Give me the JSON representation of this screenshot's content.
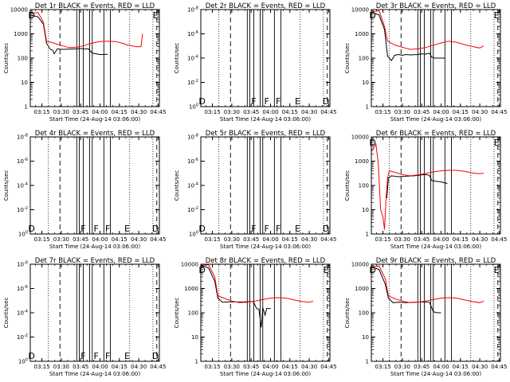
{
  "chart_data": {
    "type": "line",
    "x_ticks": [
      "03:15",
      "03:30",
      "03:45",
      "04:00",
      "04:15",
      "04:30",
      "04:45"
    ],
    "xlim": [
      "03:06",
      "04:46"
    ],
    "xlabel": "Start Time (24-Aug-14 03:06:00)",
    "ylabel": "Counts/sec",
    "y_scale": "log",
    "y_ticks_real": [
      "1",
      "10",
      "100",
      "1000",
      "10000"
    ],
    "y_ticks_empty": [
      "10^0",
      "10^-2",
      "10^-4",
      "10^-6",
      "10^-8"
    ],
    "colors": {
      "events": "#000000",
      "lld": "#ff0000"
    },
    "vlines": {
      "dotted": [
        "03:20",
        "04:23",
        "04:41"
      ],
      "dashed": [
        "03:29",
        "04:44"
      ],
      "solid": [
        "03:42",
        "03:44",
        "03:47",
        "03:52",
        "03:54",
        "04:03",
        "04:08"
      ]
    },
    "flags_empty": [
      {
        "t": "03:07",
        "text": "D"
      },
      {
        "t": "03:47",
        "text": "F"
      },
      {
        "t": "03:57",
        "text": "F"
      },
      {
        "t": "04:06",
        "text": "F"
      },
      {
        "t": "04:21",
        "text": "E"
      },
      {
        "t": "04:43",
        "text": "D"
      }
    ],
    "flags_top": [
      {
        "t": "03:07",
        "text": "D"
      },
      {
        "t": "04:43",
        "text": "E"
      }
    ],
    "panels": [
      {
        "title": "Det 1r BLACK = Events, RED = LLD",
        "mode": "data",
        "events": [
          [
            3.1,
            6000
          ],
          [
            3.2,
            5000
          ],
          [
            3.27,
            2500
          ],
          [
            3.31,
            400
          ],
          [
            3.36,
            230
          ],
          [
            3.39,
            210
          ],
          [
            3.41,
            150
          ],
          [
            3.45,
            240
          ],
          [
            3.5,
            230
          ],
          [
            3.6,
            235
          ],
          [
            3.7,
            240
          ],
          [
            3.75,
            250
          ],
          [
            3.78,
            240
          ],
          [
            3.85,
            240
          ],
          [
            3.9,
            160
          ],
          [
            3.95,
            150
          ],
          [
            4.0,
            140
          ],
          [
            4.05,
            140
          ],
          [
            4.1,
            145
          ]
        ],
        "lld": [
          [
            3.1,
            7000
          ],
          [
            3.2,
            7500
          ],
          [
            3.27,
            3000
          ],
          [
            3.31,
            500
          ],
          [
            3.4,
            420
          ],
          [
            3.5,
            330
          ],
          [
            3.6,
            270
          ],
          [
            3.7,
            280
          ],
          [
            3.8,
            330
          ],
          [
            3.9,
            420
          ],
          [
            4.0,
            480
          ],
          [
            4.1,
            500
          ],
          [
            4.2,
            480
          ],
          [
            4.3,
            400
          ],
          [
            4.35,
            350
          ],
          [
            4.45,
            300
          ],
          [
            4.5,
            290
          ],
          [
            4.53,
            300
          ],
          [
            4.55,
            1000
          ]
        ]
      },
      {
        "title": "Det 2r BLACK = Events, RED = LLD",
        "mode": "empty"
      },
      {
        "title": "Det 3r BLACK = Events, RED = LLD",
        "mode": "data",
        "events": [
          [
            3.1,
            8000
          ],
          [
            3.2,
            6000
          ],
          [
            3.27,
            1500
          ],
          [
            3.31,
            120
          ],
          [
            3.36,
            80
          ],
          [
            3.4,
            130
          ],
          [
            3.45,
            140
          ],
          [
            3.5,
            130
          ],
          [
            3.55,
            140
          ],
          [
            3.6,
            135
          ],
          [
            3.7,
            140
          ],
          [
            3.75,
            150
          ],
          [
            3.8,
            145
          ],
          [
            3.85,
            160
          ],
          [
            3.88,
            110
          ],
          [
            3.92,
            100
          ],
          [
            4.0,
            100
          ],
          [
            4.05,
            100
          ]
        ],
        "lld": [
          [
            3.1,
            8000
          ],
          [
            3.2,
            9000
          ],
          [
            3.27,
            2000
          ],
          [
            3.31,
            500
          ],
          [
            3.4,
            350
          ],
          [
            3.5,
            280
          ],
          [
            3.6,
            230
          ],
          [
            3.7,
            240
          ],
          [
            3.8,
            270
          ],
          [
            3.9,
            340
          ],
          [
            4.0,
            420
          ],
          [
            4.1,
            500
          ],
          [
            4.2,
            450
          ],
          [
            4.3,
            360
          ],
          [
            4.4,
            300
          ],
          [
            4.5,
            260
          ],
          [
            4.55,
            320
          ]
        ]
      },
      {
        "title": "Det 4r BLACK = Events, RED = LLD",
        "mode": "empty"
      },
      {
        "title": "Det 5r BLACK = Events, RED = LLD",
        "mode": "empty"
      },
      {
        "title": "Det 6r BLACK = Events, RED = LLD",
        "mode": "data",
        "events": [
          [
            3.3,
            30
          ],
          [
            3.32,
            200
          ],
          [
            3.36,
            250
          ],
          [
            3.45,
            230
          ],
          [
            3.55,
            240
          ],
          [
            3.65,
            250
          ],
          [
            3.75,
            270
          ],
          [
            3.8,
            280
          ],
          [
            3.85,
            260
          ],
          [
            3.88,
            160
          ],
          [
            3.92,
            150
          ],
          [
            4.0,
            140
          ],
          [
            4.08,
            120
          ]
        ],
        "lld": [
          [
            3.1,
            2500
          ],
          [
            3.13,
            3500
          ],
          [
            3.16,
            5000
          ],
          [
            3.19,
            800
          ],
          [
            3.22,
            10
          ],
          [
            3.25,
            5
          ],
          [
            3.27,
            1.5
          ],
          [
            3.29,
            30
          ],
          [
            3.31,
            200
          ],
          [
            3.33,
            400
          ],
          [
            3.4,
            350
          ],
          [
            3.5,
            280
          ],
          [
            3.6,
            250
          ],
          [
            3.7,
            270
          ],
          [
            3.8,
            310
          ],
          [
            3.9,
            360
          ],
          [
            4.0,
            400
          ],
          [
            4.1,
            420
          ],
          [
            4.2,
            420
          ],
          [
            4.3,
            380
          ],
          [
            4.4,
            330
          ],
          [
            4.5,
            300
          ],
          [
            4.55,
            320
          ]
        ]
      },
      {
        "title": "Det 7r BLACK = Events, RED = LLD",
        "mode": "empty"
      },
      {
        "title": "Det 8r BLACK = Events, RED = LLD",
        "mode": "data",
        "events": [
          [
            3.1,
            9000
          ],
          [
            3.2,
            7000
          ],
          [
            3.28,
            2000
          ],
          [
            3.32,
            400
          ],
          [
            3.38,
            270
          ],
          [
            3.45,
            280
          ],
          [
            3.55,
            280
          ],
          [
            3.65,
            280
          ],
          [
            3.75,
            290
          ],
          [
            3.78,
            280
          ],
          [
            3.82,
            150
          ],
          [
            3.85,
            140
          ],
          [
            3.88,
            25
          ],
          [
            3.9,
            160
          ],
          [
            3.93,
            80
          ],
          [
            3.95,
            150
          ],
          [
            4.0,
            150
          ]
        ],
        "lld": [
          [
            3.1,
            9000
          ],
          [
            3.2,
            9500
          ],
          [
            3.28,
            3000
          ],
          [
            3.32,
            500
          ],
          [
            3.4,
            400
          ],
          [
            3.5,
            300
          ],
          [
            3.6,
            260
          ],
          [
            3.7,
            270
          ],
          [
            3.8,
            300
          ],
          [
            3.9,
            350
          ],
          [
            4.0,
            400
          ],
          [
            4.1,
            420
          ],
          [
            4.2,
            400
          ],
          [
            4.3,
            340
          ],
          [
            4.4,
            290
          ],
          [
            4.5,
            270
          ],
          [
            4.55,
            300
          ]
        ]
      },
      {
        "title": "Det 9r BLACK = Events, RED = LLD",
        "mode": "data",
        "events": [
          [
            3.1,
            8000
          ],
          [
            3.2,
            6000
          ],
          [
            3.28,
            1500
          ],
          [
            3.32,
            400
          ],
          [
            3.38,
            260
          ],
          [
            3.45,
            270
          ],
          [
            3.55,
            260
          ],
          [
            3.65,
            270
          ],
          [
            3.75,
            280
          ],
          [
            3.85,
            270
          ],
          [
            3.9,
            110
          ],
          [
            3.95,
            100
          ],
          [
            4.0,
            100
          ]
        ],
        "lld": [
          [
            3.1,
            8000
          ],
          [
            3.2,
            8500
          ],
          [
            3.28,
            2500
          ],
          [
            3.32,
            500
          ],
          [
            3.4,
            380
          ],
          [
            3.5,
            300
          ],
          [
            3.6,
            260
          ],
          [
            3.7,
            270
          ],
          [
            3.8,
            300
          ],
          [
            3.9,
            350
          ],
          [
            4.0,
            400
          ],
          [
            4.1,
            420
          ],
          [
            4.2,
            400
          ],
          [
            4.3,
            340
          ],
          [
            4.4,
            290
          ],
          [
            4.5,
            260
          ],
          [
            4.55,
            300
          ]
        ]
      }
    ]
  }
}
